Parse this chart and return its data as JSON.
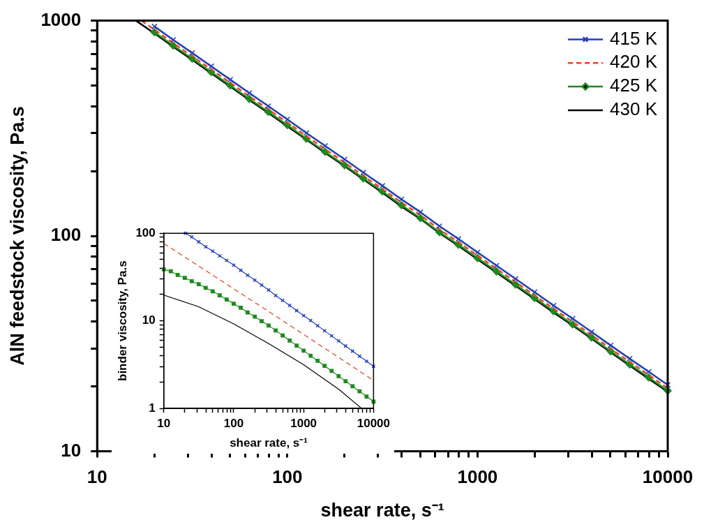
{
  "chart_data": [
    {
      "type": "line",
      "xlabel": "shear rate, s⁻¹",
      "ylabel": "AlN feedstock viscosity, Pa.s",
      "log": "xy",
      "xlim": [
        10,
        10000
      ],
      "ylim": [
        10,
        1000
      ],
      "xticks": [
        10,
        {
          "value": 20,
          "label": null
        },
        {
          "value": 30,
          "label": null
        },
        {
          "value": 40,
          "label": null
        },
        {
          "value": 50,
          "label": null
        },
        {
          "value": 60,
          "label": null
        },
        {
          "value": 70,
          "label": null
        },
        {
          "value": 80,
          "label": null
        },
        {
          "value": 90,
          "label": null
        },
        100,
        {
          "value": 200,
          "label": null
        },
        {
          "value": 300,
          "label": null
        },
        {
          "value": 400,
          "label": null
        },
        {
          "value": 500,
          "label": null
        },
        {
          "value": 600,
          "label": null
        },
        {
          "value": 700,
          "label": null
        },
        {
          "value": 800,
          "label": null
        },
        {
          "value": 900,
          "label": null
        },
        1000,
        {
          "value": 2000,
          "label": null
        },
        {
          "value": 3000,
          "label": null
        },
        {
          "value": 4000,
          "label": null
        },
        {
          "value": 5000,
          "label": null
        },
        {
          "value": 6000,
          "label": null
        },
        {
          "value": 7000,
          "label": null
        },
        {
          "value": 8000,
          "label": null
        },
        {
          "value": 9000,
          "label": null
        },
        10000
      ],
      "yticks": [
        10,
        {
          "value": 20,
          "label": null
        },
        {
          "value": 30,
          "label": null
        },
        {
          "value": 40,
          "label": null
        },
        {
          "value": 50,
          "label": null
        },
        {
          "value": 60,
          "label": null
        },
        {
          "value": 70,
          "label": null
        },
        {
          "value": 80,
          "label": null
        },
        {
          "value": 90,
          "label": null
        },
        100,
        {
          "value": 200,
          "label": null
        },
        {
          "value": 300,
          "label": null
        },
        {
          "value": 400,
          "label": null
        },
        {
          "value": 500,
          "label": null
        },
        {
          "value": 600,
          "label": null
        },
        {
          "value": 700,
          "label": null
        },
        {
          "value": 800,
          "label": null
        },
        {
          "value": 900,
          "label": null
        },
        1000
      ],
      "legend": "top right",
      "grid": false,
      "series": [
        {
          "name": "415 K",
          "color": "#1f3fbf",
          "marker": "cross",
          "line_style": "solid",
          "x": [
            20,
            25.1,
            31.6,
            39.8,
            50.1,
            63.1,
            79.4,
            100,
            126,
            158,
            200,
            251,
            316,
            398,
            501,
            631,
            794,
            1000,
            1259,
            1585,
            1995,
            2512,
            3162,
            3981,
            5012,
            6310,
            7943,
            10000
          ],
          "values": [
            940,
            815,
            708,
            614,
            532,
            461,
            401,
            348,
            301,
            262,
            227,
            197,
            171,
            148,
            129,
            111,
            96.8,
            83.9,
            72.8,
            63.2,
            54.8,
            47.5,
            41.3,
            35.8,
            31.0,
            26.9,
            23.4,
            20.3
          ]
        },
        {
          "name": "420 K",
          "color": "#ff3b1f",
          "marker": "none",
          "line_style": "dashed",
          "x": [
            17.1,
            20,
            25.1,
            31.6,
            39.8,
            50.1,
            63.1,
            79.4,
            100,
            126,
            158,
            200,
            251,
            316,
            398,
            501,
            631,
            794,
            1000,
            1259,
            1585,
            1995,
            2512,
            3162,
            3981,
            5012,
            6310,
            7943,
            10000
          ],
          "values": [
            1000,
            908,
            787,
            684,
            593,
            514,
            445,
            387,
            336,
            291,
            253,
            219,
            190,
            165,
            143,
            125,
            107,
            93.5,
            81.0,
            70.3,
            61.1,
            52.9,
            45.9,
            39.9,
            34.6,
            29.9,
            26.0,
            22.6,
            19.6
          ]
        },
        {
          "name": "425 K",
          "color": "#1a8c1a",
          "marker": "diamond",
          "line_style": "solid",
          "x": [
            20,
            25.1,
            31.6,
            39.8,
            50.1,
            63.1,
            79.4,
            100,
            126,
            158,
            200,
            251,
            316,
            398,
            501,
            631,
            794,
            1000,
            1259,
            1585,
            1995,
            2512,
            3162,
            3981,
            5012,
            6310,
            7943,
            10000
          ],
          "values": [
            884,
            766,
            666,
            577,
            500,
            433,
            377,
            327,
            283,
            246,
            213,
            185,
            161,
            139,
            121,
            104,
            91.0,
            78.9,
            68.4,
            59.4,
            51.5,
            44.7,
            38.8,
            33.7,
            29.1,
            25.3,
            22.0,
            19.1
          ]
        },
        {
          "name": "430 K",
          "color": "#000000",
          "marker": "none",
          "line_style": "solid",
          "x": [
            16,
            20,
            25.1,
            31.6,
            39.8,
            50.1,
            63.1,
            79.4,
            100,
            126,
            158,
            200,
            251,
            316,
            398,
            501,
            631,
            794,
            1000,
            1259,
            1585,
            1995,
            2512,
            3162,
            3981,
            5012,
            6310,
            7943,
            10000
          ],
          "values": [
            1000,
            873,
            757,
            658,
            570,
            494,
            428,
            373,
            323,
            280,
            243,
            211,
            183,
            159,
            137,
            120,
            103,
            89.9,
            77.9,
            67.6,
            58.7,
            50.9,
            44.1,
            38.4,
            33.3,
            28.8,
            25.0,
            21.7,
            18.9
          ]
        }
      ]
    },
    {
      "type": "line",
      "xlabel": "shear rate, s⁻¹",
      "ylabel": "binder viscosity, Pa.s",
      "log": "xy",
      "xlim": [
        10,
        10000
      ],
      "ylim": [
        1,
        100
      ],
      "xticks": [
        10,
        {
          "value": 20,
          "label": null
        },
        {
          "value": 30,
          "label": null
        },
        {
          "value": 40,
          "label": null
        },
        {
          "value": 50,
          "label": null
        },
        {
          "value": 60,
          "label": null
        },
        {
          "value": 70,
          "label": null
        },
        {
          "value": 80,
          "label": null
        },
        {
          "value": 90,
          "label": null
        },
        100,
        {
          "value": 200,
          "label": null
        },
        {
          "value": 300,
          "label": null
        },
        {
          "value": 400,
          "label": null
        },
        {
          "value": 500,
          "label": null
        },
        {
          "value": 600,
          "label": null
        },
        {
          "value": 700,
          "label": null
        },
        {
          "value": 800,
          "label": null
        },
        {
          "value": 900,
          "label": null
        },
        1000,
        {
          "value": 2000,
          "label": null
        },
        {
          "value": 3000,
          "label": null
        },
        {
          "value": 4000,
          "label": null
        },
        {
          "value": 5000,
          "label": null
        },
        {
          "value": 6000,
          "label": null
        },
        {
          "value": 7000,
          "label": null
        },
        {
          "value": 8000,
          "label": null
        },
        {
          "value": 9000,
          "label": null
        },
        10000
      ],
      "yticks": [
        1,
        {
          "value": 2,
          "label": null
        },
        {
          "value": 3,
          "label": null
        },
        {
          "value": 4,
          "label": null
        },
        {
          "value": 5,
          "label": null
        },
        {
          "value": 6,
          "label": null
        },
        {
          "value": 7,
          "label": null
        },
        {
          "value": 8,
          "label": null
        },
        {
          "value": 9,
          "label": null
        },
        10,
        {
          "value": 20,
          "label": null
        },
        {
          "value": 30,
          "label": null
        },
        {
          "value": 40,
          "label": null
        },
        {
          "value": 50,
          "label": null
        },
        {
          "value": 60,
          "label": null
        },
        {
          "value": 70,
          "label": null
        },
        {
          "value": 80,
          "label": null
        },
        {
          "value": 90,
          "label": null
        },
        100
      ],
      "grid": false,
      "series": [
        {
          "color": "#2040d0",
          "marker": "cross",
          "line_style": "solid",
          "x": [
            20.4,
            25.1,
            31.6,
            39.8,
            50.1,
            63.1,
            79.4,
            100,
            126,
            158,
            200,
            251,
            316,
            398,
            501,
            631,
            794,
            1000,
            1259,
            1585,
            1995,
            2512,
            3162,
            3981,
            5012,
            6310,
            7943,
            10000
          ],
          "values": [
            100,
            90.8,
            79.8,
            70.1,
            62.5,
            55.2,
            48.9,
            43.3,
            37.8,
            33.2,
            29.2,
            25.6,
            22.5,
            19.5,
            17.1,
            15.0,
            13.1,
            11.5,
            10.1,
            8.81,
            7.71,
            6.75,
            5.9,
            5.16,
            4.52,
            3.95,
            3.46,
            3.03
          ]
        },
        {
          "color": "#ff3b1f",
          "marker": "none",
          "line_style": "dashed",
          "x": [
            10,
            31.6,
            100,
            316,
            1000,
            3162,
            10000
          ],
          "values": [
            76.2,
            42.2,
            23.2,
            12.8,
            7.0,
            3.83,
            2.09
          ]
        },
        {
          "color": "#1a8c1a",
          "marker": "square",
          "line_style": "solid",
          "x": [
            10,
            12.6,
            15.8,
            20,
            25.1,
            31.6,
            39.8,
            50.1,
            63.1,
            79.4,
            100,
            126,
            158,
            200,
            251,
            316,
            398,
            501,
            631,
            794,
            1000,
            1259,
            1585,
            1995,
            2512,
            3162,
            3981,
            5012,
            6310,
            7943,
            10000
          ],
          "values": [
            38.7,
            36.8,
            33.4,
            30.9,
            28.4,
            26.2,
            23.8,
            21.7,
            19.6,
            17.5,
            15.7,
            14.1,
            12.5,
            11.2,
            9.93,
            8.85,
            7.78,
            6.82,
            5.97,
            5.22,
            4.57,
            4.0,
            3.5,
            3.06,
            2.68,
            2.34,
            2.05,
            1.79,
            1.57,
            1.37,
            1.2
          ]
        },
        {
          "color": "#000000",
          "marker": "none",
          "line_style": "solid",
          "x": [
            10,
            31.6,
            100,
            316,
            1000,
            3162,
            6760
          ],
          "values": [
            19.7,
            14.5,
            9.25,
            5.5,
            3.16,
            1.66,
            1
          ]
        }
      ]
    }
  ]
}
